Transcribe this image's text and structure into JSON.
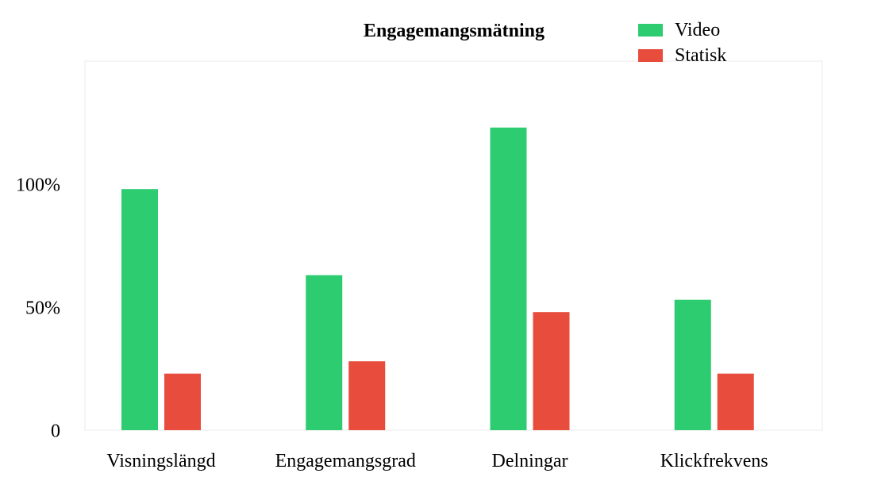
{
  "chart_data": {
    "type": "bar",
    "title": "Engagemangsmätning",
    "categories": [
      "Visningslängd",
      "Engagemangsgrad",
      "Delningar",
      "Klickfrekvens"
    ],
    "series": [
      {
        "name": "Video",
        "color": "#2ecc71",
        "values": [
          0.98,
          0.63,
          1.23,
          0.53
        ]
      },
      {
        "name": "Statisk",
        "color": "#e74c3c",
        "values": [
          0.23,
          0.28,
          0.48,
          0.23
        ]
      }
    ],
    "y_ticks": [
      {
        "value": 0,
        "label": "0"
      },
      {
        "value": 0.5,
        "label": "50%"
      },
      {
        "value": 1.0,
        "label": "100%"
      }
    ],
    "ylim": [
      0,
      1.5
    ],
    "grid": false,
    "legend_position": "top-right",
    "xlabel": "",
    "ylabel": ""
  }
}
